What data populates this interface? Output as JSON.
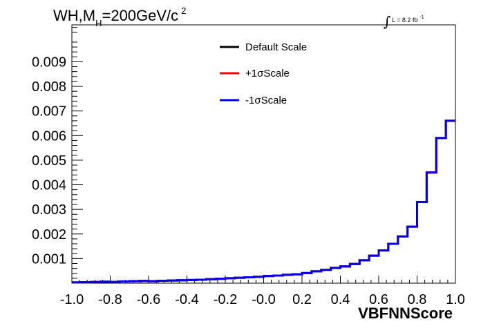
{
  "chart_data": {
    "type": "line",
    "style": "step-histogram",
    "title": {
      "main": "WH,M",
      "subscript": "H",
      "rest": "=200GeV/c",
      "superscript": "2"
    },
    "luminosity": {
      "symbol": "∫",
      "text": "L = 8.2 fb",
      "superscript": "-1"
    },
    "xlabel": "VBFNNScore",
    "ylabel": "",
    "xlim": [
      -1.0,
      1.0
    ],
    "ylim": [
      0,
      0.0105
    ],
    "x_ticks": [
      "-1.0",
      "-0.8",
      "-0.6",
      "-0.4",
      "-0.2",
      "-0.0",
      "0.2",
      "0.4",
      "0.6",
      "0.8",
      "1.0"
    ],
    "y_ticks": [
      "0.001",
      "0.002",
      "0.003",
      "0.004",
      "0.005",
      "0.006",
      "0.007",
      "0.008",
      "0.009"
    ],
    "bin_edges": [
      -1.0,
      -0.95,
      -0.9,
      -0.85,
      -0.8,
      -0.75,
      -0.7,
      -0.65,
      -0.6,
      -0.55,
      -0.5,
      -0.45,
      -0.4,
      -0.35,
      -0.3,
      -0.25,
      -0.2,
      -0.15,
      -0.1,
      -0.05,
      0.0,
      0.05,
      0.1,
      0.15,
      0.2,
      0.25,
      0.3,
      0.35,
      0.4,
      0.45,
      0.5,
      0.55,
      0.6,
      0.65,
      0.7,
      0.75,
      0.8,
      0.85,
      0.9,
      0.95,
      1.0
    ],
    "legend_position": "top-center",
    "grid": false,
    "series": [
      {
        "name": "Default Scale",
        "color": "#000000",
        "values": [
          3e-05,
          4e-05,
          5e-05,
          6e-05,
          5e-05,
          7e-05,
          8e-05,
          9e-05,
          8e-05,
          0.0001,
          0.00011,
          0.00012,
          0.00013,
          0.00014,
          0.00016,
          0.00018,
          0.0002,
          0.00022,
          0.00024,
          0.00026,
          0.00029,
          0.00031,
          0.00034,
          0.00036,
          0.00041,
          0.00048,
          0.00054,
          0.00062,
          0.00068,
          0.00078,
          0.00093,
          0.00112,
          0.00133,
          0.0016,
          0.0019,
          0.0023,
          0.0033,
          0.0045,
          0.0059,
          0.0066
        ]
      },
      {
        "name": "+1σScale",
        "color": "#ff0000",
        "values": [
          3e-05,
          4e-05,
          5e-05,
          6e-05,
          5e-05,
          7e-05,
          8e-05,
          9e-05,
          8e-05,
          0.0001,
          0.00011,
          0.00012,
          0.00013,
          0.00014,
          0.00016,
          0.00018,
          0.0002,
          0.00022,
          0.00024,
          0.00026,
          0.00029,
          0.00031,
          0.00034,
          0.00036,
          0.00041,
          0.00048,
          0.00054,
          0.00062,
          0.00068,
          0.00078,
          0.00093,
          0.00112,
          0.00133,
          0.0016,
          0.0019,
          0.0023,
          0.0033,
          0.0045,
          0.0059,
          0.0066
        ]
      },
      {
        "name": "-1σScale",
        "color": "#0000ee",
        "values": [
          3e-05,
          4e-05,
          5e-05,
          6e-05,
          5e-05,
          7e-05,
          8e-05,
          9e-05,
          8e-05,
          0.0001,
          0.00011,
          0.00012,
          0.00013,
          0.00014,
          0.00016,
          0.00018,
          0.0002,
          0.00022,
          0.00024,
          0.00026,
          0.00029,
          0.00031,
          0.00034,
          0.00036,
          0.00041,
          0.00048,
          0.00054,
          0.00062,
          0.00068,
          0.00078,
          0.00093,
          0.00112,
          0.00133,
          0.0016,
          0.0019,
          0.0023,
          0.0033,
          0.0045,
          0.0059,
          0.0066
        ]
      }
    ]
  }
}
